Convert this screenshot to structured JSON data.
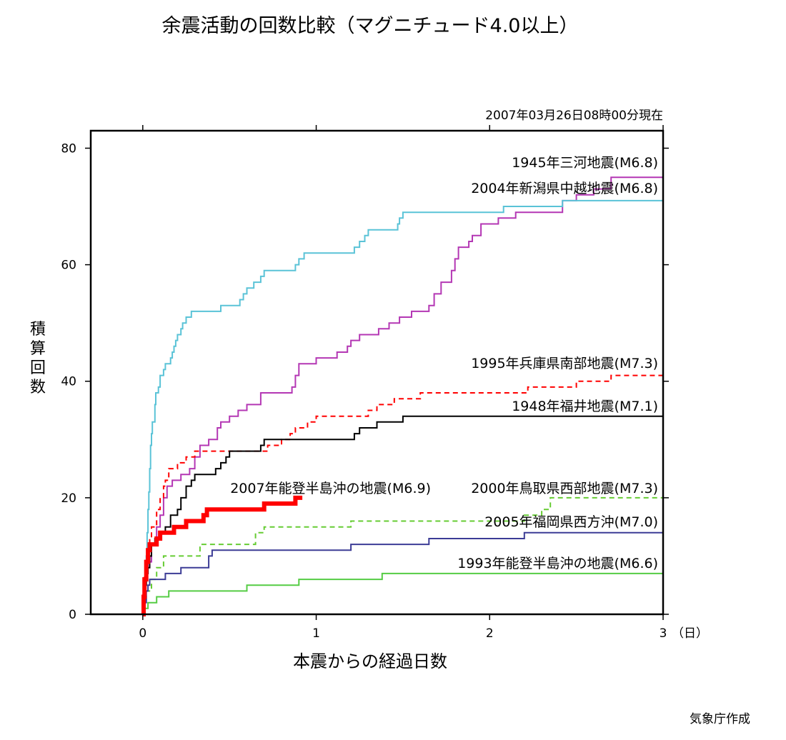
{
  "title": "余震活動の回数比較（マグニチュード4.0以上）",
  "timestamp": "2007年03月26日08時00分現在",
  "credit": "気象庁作成",
  "chart_data": {
    "type": "line",
    "subtype": "step",
    "title": "余震活動の回数比較（マグニチュード4.0以上）",
    "xlabel": "本震からの経過日数",
    "ylabel": "積算回数",
    "x_unit": "（日）",
    "xlim": [
      -0.3,
      3
    ],
    "ylim": [
      0,
      83
    ],
    "xticks": [
      "0",
      "1",
      "2",
      "3"
    ],
    "yticks": [
      "0",
      "20",
      "40",
      "60",
      "80"
    ],
    "grid": false,
    "series": [
      {
        "name": "1945年三河地震(M6.8)",
        "color": "#b437b4",
        "dash": "solid",
        "width": "normal",
        "points": [
          [
            0,
            0
          ],
          [
            0.005,
            3
          ],
          [
            0.01,
            5
          ],
          [
            0.02,
            7
          ],
          [
            0.03,
            9
          ],
          [
            0.05,
            12
          ],
          [
            0.08,
            15
          ],
          [
            0.1,
            17
          ],
          [
            0.12,
            20
          ],
          [
            0.14,
            22
          ],
          [
            0.17,
            23
          ],
          [
            0.2,
            23
          ],
          [
            0.22,
            24
          ],
          [
            0.27,
            25
          ],
          [
            0.3,
            27
          ],
          [
            0.33,
            29
          ],
          [
            0.38,
            30
          ],
          [
            0.43,
            32
          ],
          [
            0.45,
            33
          ],
          [
            0.5,
            34
          ],
          [
            0.55,
            35
          ],
          [
            0.6,
            36
          ],
          [
            0.68,
            38
          ],
          [
            0.85,
            38
          ],
          [
            0.86,
            39
          ],
          [
            0.88,
            41
          ],
          [
            0.9,
            43
          ],
          [
            1.0,
            44
          ],
          [
            1.12,
            45
          ],
          [
            1.18,
            46
          ],
          [
            1.2,
            47
          ],
          [
            1.25,
            48
          ],
          [
            1.35,
            48
          ],
          [
            1.36,
            49
          ],
          [
            1.42,
            50
          ],
          [
            1.48,
            51
          ],
          [
            1.55,
            52
          ],
          [
            1.65,
            53
          ],
          [
            1.68,
            55
          ],
          [
            1.72,
            57
          ],
          [
            1.78,
            59
          ],
          [
            1.8,
            61
          ],
          [
            1.82,
            63
          ],
          [
            1.88,
            64
          ],
          [
            1.9,
            65
          ],
          [
            1.95,
            67
          ],
          [
            2.05,
            68
          ],
          [
            2.15,
            69
          ],
          [
            2.4,
            69
          ],
          [
            2.42,
            71
          ],
          [
            2.5,
            72
          ],
          [
            2.6,
            73
          ],
          [
            2.7,
            75
          ],
          [
            3.0,
            75
          ]
        ]
      },
      {
        "name": "2004年新潟県中越地震(M6.8)",
        "color": "#5ac3d7",
        "dash": "solid",
        "width": "normal",
        "points": [
          [
            0,
            0
          ],
          [
            0.005,
            2
          ],
          [
            0.01,
            5
          ],
          [
            0.02,
            10
          ],
          [
            0.025,
            14
          ],
          [
            0.03,
            18
          ],
          [
            0.035,
            21
          ],
          [
            0.04,
            25
          ],
          [
            0.045,
            29
          ],
          [
            0.05,
            31
          ],
          [
            0.055,
            33
          ],
          [
            0.07,
            36
          ],
          [
            0.075,
            38
          ],
          [
            0.09,
            39
          ],
          [
            0.1,
            41
          ],
          [
            0.12,
            42
          ],
          [
            0.13,
            43
          ],
          [
            0.15,
            43
          ],
          [
            0.16,
            44
          ],
          [
            0.17,
            45
          ],
          [
            0.18,
            46
          ],
          [
            0.19,
            47
          ],
          [
            0.2,
            48
          ],
          [
            0.22,
            49
          ],
          [
            0.23,
            50
          ],
          [
            0.25,
            51
          ],
          [
            0.28,
            52
          ],
          [
            0.42,
            52
          ],
          [
            0.45,
            53
          ],
          [
            0.55,
            53
          ],
          [
            0.56,
            54
          ],
          [
            0.58,
            55
          ],
          [
            0.6,
            56
          ],
          [
            0.64,
            57
          ],
          [
            0.68,
            58
          ],
          [
            0.7,
            59
          ],
          [
            0.85,
            59
          ],
          [
            0.88,
            60
          ],
          [
            0.9,
            61
          ],
          [
            0.93,
            62
          ],
          [
            1.2,
            62
          ],
          [
            1.22,
            63
          ],
          [
            1.25,
            64
          ],
          [
            1.28,
            65
          ],
          [
            1.3,
            66
          ],
          [
            1.45,
            66
          ],
          [
            1.47,
            67
          ],
          [
            1.48,
            68
          ],
          [
            1.5,
            69
          ],
          [
            2.05,
            69
          ],
          [
            2.08,
            70
          ],
          [
            2.4,
            70
          ],
          [
            2.42,
            71
          ],
          [
            3.0,
            71
          ]
        ]
      },
      {
        "name": "1995年兵庫県南部地震(M7.3)",
        "color": "#ff0000",
        "dash": "dashed",
        "width": "normal",
        "points": [
          [
            0,
            0
          ],
          [
            0.005,
            4
          ],
          [
            0.01,
            7
          ],
          [
            0.02,
            9
          ],
          [
            0.03,
            11
          ],
          [
            0.04,
            13
          ],
          [
            0.05,
            15
          ],
          [
            0.08,
            18
          ],
          [
            0.1,
            20
          ],
          [
            0.12,
            22
          ],
          [
            0.13,
            23
          ],
          [
            0.15,
            25
          ],
          [
            0.2,
            26
          ],
          [
            0.25,
            27
          ],
          [
            0.3,
            28
          ],
          [
            0.4,
            28
          ],
          [
            0.45,
            28
          ],
          [
            0.5,
            28
          ],
          [
            0.6,
            28
          ],
          [
            0.7,
            28
          ],
          [
            0.72,
            29
          ],
          [
            0.8,
            30
          ],
          [
            0.85,
            31
          ],
          [
            0.88,
            32
          ],
          [
            0.95,
            33
          ],
          [
            1.0,
            34
          ],
          [
            1.2,
            34
          ],
          [
            1.3,
            35
          ],
          [
            1.35,
            36
          ],
          [
            1.45,
            37
          ],
          [
            1.6,
            38
          ],
          [
            2.2,
            38
          ],
          [
            2.22,
            39
          ],
          [
            2.5,
            40
          ],
          [
            2.7,
            41
          ],
          [
            3.0,
            41
          ]
        ]
      },
      {
        "name": "1948年福井地震(M7.1)",
        "color": "#000000",
        "dash": "solid",
        "width": "normal",
        "points": [
          [
            0,
            0
          ],
          [
            0.005,
            3
          ],
          [
            0.01,
            5
          ],
          [
            0.02,
            7
          ],
          [
            0.03,
            8
          ],
          [
            0.04,
            10
          ],
          [
            0.05,
            12
          ],
          [
            0.07,
            13
          ],
          [
            0.1,
            14
          ],
          [
            0.13,
            15
          ],
          [
            0.16,
            17
          ],
          [
            0.2,
            18
          ],
          [
            0.22,
            20
          ],
          [
            0.25,
            22
          ],
          [
            0.28,
            23
          ],
          [
            0.3,
            24
          ],
          [
            0.4,
            24
          ],
          [
            0.42,
            25
          ],
          [
            0.45,
            26
          ],
          [
            0.48,
            27
          ],
          [
            0.5,
            28
          ],
          [
            0.55,
            28
          ],
          [
            0.6,
            28
          ],
          [
            0.68,
            29
          ],
          [
            0.7,
            30
          ],
          [
            0.9,
            30
          ],
          [
            1.0,
            30
          ],
          [
            1.2,
            30
          ],
          [
            1.22,
            31
          ],
          [
            1.25,
            32
          ],
          [
            1.35,
            33
          ],
          [
            1.5,
            34
          ],
          [
            3.0,
            34
          ]
        ]
      },
      {
        "name": "2000年鳥取県西部地震(M7.3)",
        "color": "#66cc33",
        "dash": "dashed",
        "width": "normal",
        "points": [
          [
            0,
            0
          ],
          [
            0.01,
            2
          ],
          [
            0.02,
            4
          ],
          [
            0.05,
            6
          ],
          [
            0.08,
            8
          ],
          [
            0.12,
            10
          ],
          [
            0.3,
            10
          ],
          [
            0.33,
            12
          ],
          [
            0.5,
            12
          ],
          [
            0.6,
            12
          ],
          [
            0.65,
            14
          ],
          [
            0.7,
            15
          ],
          [
            0.9,
            15
          ],
          [
            1.0,
            15
          ],
          [
            1.15,
            15
          ],
          [
            1.2,
            16
          ],
          [
            1.5,
            16
          ],
          [
            2.0,
            16
          ],
          [
            2.2,
            17
          ],
          [
            2.3,
            18
          ],
          [
            2.35,
            20
          ],
          [
            3.0,
            20
          ]
        ]
      },
      {
        "name": "2005年福岡県西方沖(M7.0)",
        "color": "#3c3c96",
        "dash": "solid",
        "width": "normal",
        "points": [
          [
            0,
            0
          ],
          [
            0.01,
            2
          ],
          [
            0.02,
            4
          ],
          [
            0.03,
            5
          ],
          [
            0.04,
            6
          ],
          [
            0.05,
            6
          ],
          [
            0.1,
            6
          ],
          [
            0.13,
            7
          ],
          [
            0.2,
            7
          ],
          [
            0.22,
            8
          ],
          [
            0.3,
            8
          ],
          [
            0.38,
            10
          ],
          [
            0.4,
            11
          ],
          [
            0.6,
            11
          ],
          [
            0.8,
            11
          ],
          [
            1.0,
            11
          ],
          [
            1.15,
            11
          ],
          [
            1.2,
            12
          ],
          [
            1.5,
            12
          ],
          [
            1.65,
            13
          ],
          [
            1.8,
            13
          ],
          [
            2.0,
            13
          ],
          [
            2.1,
            13
          ],
          [
            2.2,
            14
          ],
          [
            3.0,
            14
          ]
        ]
      },
      {
        "name": "1993年能登半島沖の地震(M6.6)",
        "color": "#55cc44",
        "dash": "solid",
        "width": "normal",
        "points": [
          [
            0,
            0
          ],
          [
            0.01,
            1
          ],
          [
            0.03,
            2
          ],
          [
            0.08,
            3
          ],
          [
            0.15,
            4
          ],
          [
            0.3,
            4
          ],
          [
            0.4,
            4
          ],
          [
            0.6,
            5
          ],
          [
            0.85,
            5
          ],
          [
            0.9,
            6
          ],
          [
            1.1,
            6
          ],
          [
            1.2,
            6
          ],
          [
            1.3,
            6
          ],
          [
            1.38,
            7
          ],
          [
            2.0,
            7
          ],
          [
            3.0,
            7
          ]
        ]
      },
      {
        "name": "2007年能登半島沖の地震(M6.9)",
        "color": "#ff0000",
        "dash": "solid",
        "width": "bold",
        "points": [
          [
            0,
            0
          ],
          [
            0.005,
            3
          ],
          [
            0.01,
            6
          ],
          [
            0.02,
            9
          ],
          [
            0.03,
            11
          ],
          [
            0.04,
            12
          ],
          [
            0.08,
            13
          ],
          [
            0.1,
            14
          ],
          [
            0.18,
            15
          ],
          [
            0.25,
            16
          ],
          [
            0.35,
            17
          ],
          [
            0.37,
            18
          ],
          [
            0.55,
            18
          ],
          [
            0.6,
            18
          ],
          [
            0.7,
            19
          ],
          [
            0.85,
            19
          ],
          [
            0.88,
            20
          ],
          [
            0.92,
            20
          ]
        ]
      }
    ]
  }
}
